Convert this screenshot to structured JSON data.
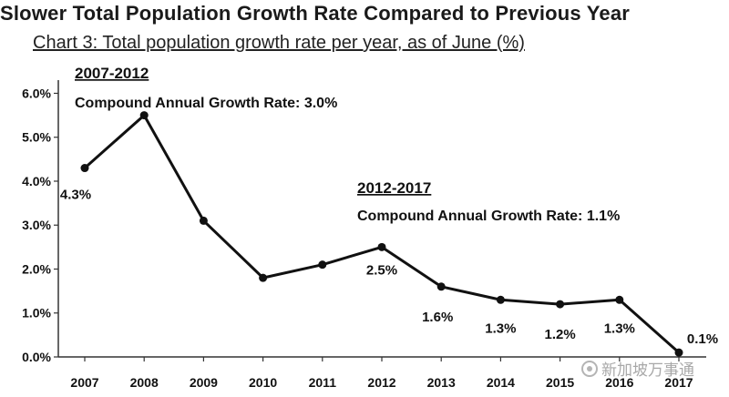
{
  "title": "Slower Total Population Growth Rate Compared to Previous Year",
  "subtitle": "Chart 3: Total population growth rate per year, as of June (%)",
  "watermark": "新加坡万事通",
  "chart_data": {
    "type": "line",
    "x": [
      "2007",
      "2008",
      "2009",
      "2010",
      "2011",
      "2012",
      "2013",
      "2014",
      "2015",
      "2016",
      "2017"
    ],
    "series": [
      {
        "values": [
          4.3,
          5.5,
          3.1,
          1.8,
          2.1,
          2.5,
          1.6,
          1.3,
          1.2,
          1.3,
          0.1
        ]
      }
    ],
    "data_labels": [
      {
        "index": 0,
        "text": "4.3%"
      },
      {
        "index": 5,
        "text": "2.5%"
      },
      {
        "index": 6,
        "text": "1.6%"
      },
      {
        "index": 7,
        "text": "1.3%"
      },
      {
        "index": 8,
        "text": "1.2%"
      },
      {
        "index": 9,
        "text": "1.3%"
      },
      {
        "index": 10,
        "text": "0.1%"
      }
    ],
    "yticks": [
      {
        "value": 0,
        "label": "0.0%"
      },
      {
        "value": 1,
        "label": "1.0%"
      },
      {
        "value": 2,
        "label": "2.0%"
      },
      {
        "value": 3,
        "label": "3.0%"
      },
      {
        "value": 4,
        "label": "4.0%"
      },
      {
        "value": 5,
        "label": "5.0%"
      },
      {
        "value": 6,
        "label": "6.0%"
      }
    ],
    "ylim": [
      0,
      6.3
    ],
    "grid": false,
    "annotations": [
      {
        "period": "2007-2012",
        "text": "Compound Annual Growth Rate: 3.0%"
      },
      {
        "period": "2012-2017",
        "text": "Compound Annual Growth Rate: 1.1%"
      }
    ],
    "colors": {
      "line": "#111111",
      "marker": "#111111",
      "axis": "#333333"
    }
  }
}
